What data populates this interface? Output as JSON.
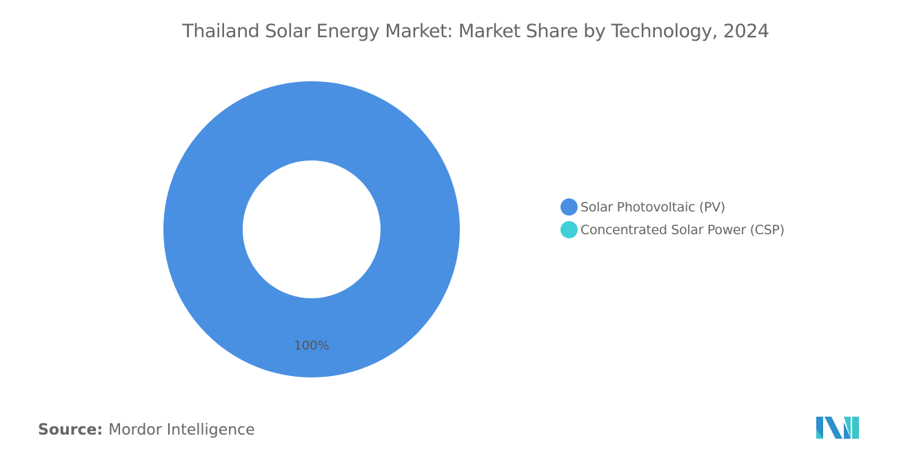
{
  "chart_data": {
    "type": "pie",
    "subtype": "donut",
    "title": "Thailand Solar Energy Market: Market Share by Technology, 2024",
    "categories": [
      "Solar Photovoltaic (PV)",
      "Concentrated Solar Power (CSP)"
    ],
    "values": [
      100,
      0
    ],
    "data_labels": [
      "100%"
    ],
    "colors": [
      "#4a90e2",
      "#3fd0d8"
    ],
    "legend_position": "right"
  },
  "source": {
    "label": "Source:",
    "value": "Mordor Intelligence"
  },
  "logo": {
    "name": "mordor-intelligence-logo",
    "colors": [
      "#2d8fcc",
      "#3fc4cc"
    ]
  }
}
